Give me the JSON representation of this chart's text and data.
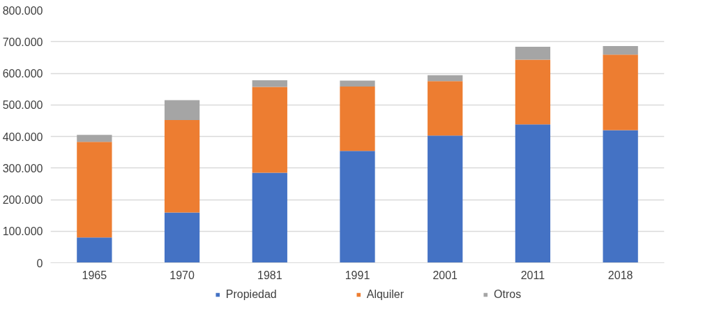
{
  "chart_data": {
    "type": "bar",
    "stacked": true,
    "categories": [
      "1965",
      "1970",
      "1981",
      "1991",
      "2001",
      "2011",
      "2018"
    ],
    "series": [
      {
        "name": "Propiedad",
        "color": "#4472c4",
        "values": [
          80000,
          159000,
          285000,
          354000,
          403000,
          438000,
          420000
        ]
      },
      {
        "name": "Alquiler",
        "color": "#ed7d31",
        "values": [
          303000,
          293000,
          272000,
          204000,
          172000,
          205000,
          239000
        ]
      },
      {
        "name": "Otros",
        "color": "#a5a5a5",
        "values": [
          22000,
          63000,
          21000,
          19000,
          19000,
          41000,
          27000
        ]
      }
    ],
    "ylim": [
      0,
      800000
    ],
    "yticks": [
      {
        "value": 0,
        "label": "0"
      },
      {
        "value": 100000,
        "label": "100.000"
      },
      {
        "value": 200000,
        "label": "200.000"
      },
      {
        "value": 300000,
        "label": "300.000"
      },
      {
        "value": 400000,
        "label": "400.000"
      },
      {
        "value": 500000,
        "label": "500.000"
      },
      {
        "value": 600000,
        "label": "600.000"
      },
      {
        "value": 700000,
        "label": "700.000"
      },
      {
        "value": 800000,
        "label": "800.000"
      }
    ],
    "grid": "y",
    "legend": "bottom"
  }
}
